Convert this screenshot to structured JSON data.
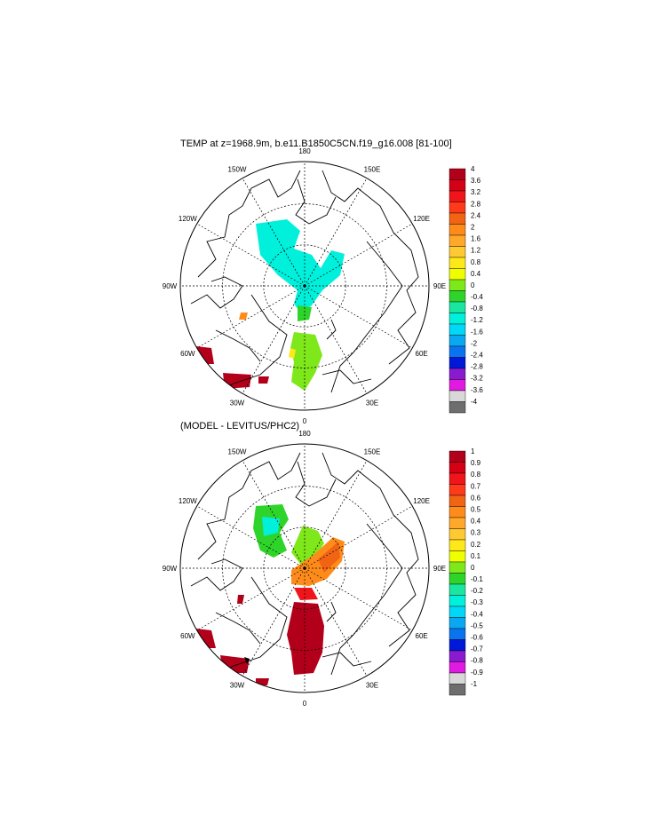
{
  "panels": [
    {
      "title": "TEMP at z=1968.9m, b.e11.B1850C5CN.f19_g16.008 [81-100]",
      "lon_labels": [
        "180",
        "150E",
        "120E",
        "90E",
        "60E",
        "30E",
        "0",
        "30W",
        "60W",
        "90W",
        "120W",
        "150W"
      ],
      "colorbar": {
        "labels": [
          "4",
          "3.6",
          "3.2",
          "2.8",
          "2.4",
          "2",
          "1.6",
          "1.2",
          "0.8",
          "0.4",
          "0",
          "-0.4",
          "-0.8",
          "-1.2",
          "-1.6",
          "-2",
          "-2.4",
          "-2.8",
          "-3.2",
          "-3.6",
          "-4"
        ],
        "colors": [
          "#b3001a",
          "#d40016",
          "#f0151a",
          "#ff3a1a",
          "#f06414",
          "#ff8c1a",
          "#ffa82a",
          "#ffc933",
          "#ffe81a",
          "#f0ff00",
          "#7ee81a",
          "#2ed42a",
          "#1ae6a0",
          "#00f0dc",
          "#00d8f8",
          "#0aa8f0",
          "#0a74f0",
          "#0018d8",
          "#8a1ad0",
          "#e01ae0",
          "#d8d8d8",
          "#6e6e6e"
        ]
      }
    },
    {
      "title": "(MODEL - LEVITUS/PHC2)",
      "lon_labels": [
        "180",
        "150E",
        "120E",
        "90E",
        "60E",
        "30E",
        "0",
        "30W",
        "60W",
        "90W",
        "120W",
        "150W"
      ],
      "colorbar": {
        "labels": [
          "1",
          "0.9",
          "0.8",
          "0.7",
          "0.6",
          "0.5",
          "0.4",
          "0.3",
          "0.2",
          "0.1",
          "0",
          "-0.1",
          "-0.2",
          "-0.3",
          "-0.4",
          "-0.5",
          "-0.6",
          "-0.7",
          "-0.8",
          "-0.9",
          "-1"
        ],
        "colors": [
          "#b3001a",
          "#d40016",
          "#f0151a",
          "#ff3a1a",
          "#f06414",
          "#ff8c1a",
          "#ffa82a",
          "#ffc933",
          "#ffe81a",
          "#f0ff00",
          "#7ee81a",
          "#2ed42a",
          "#1ae6a0",
          "#00f0dc",
          "#00d8f8",
          "#0aa8f0",
          "#0a74f0",
          "#0018d8",
          "#8a1ad0",
          "#e01ae0",
          "#d8d8d8",
          "#6e6e6e"
        ]
      }
    }
  ]
}
